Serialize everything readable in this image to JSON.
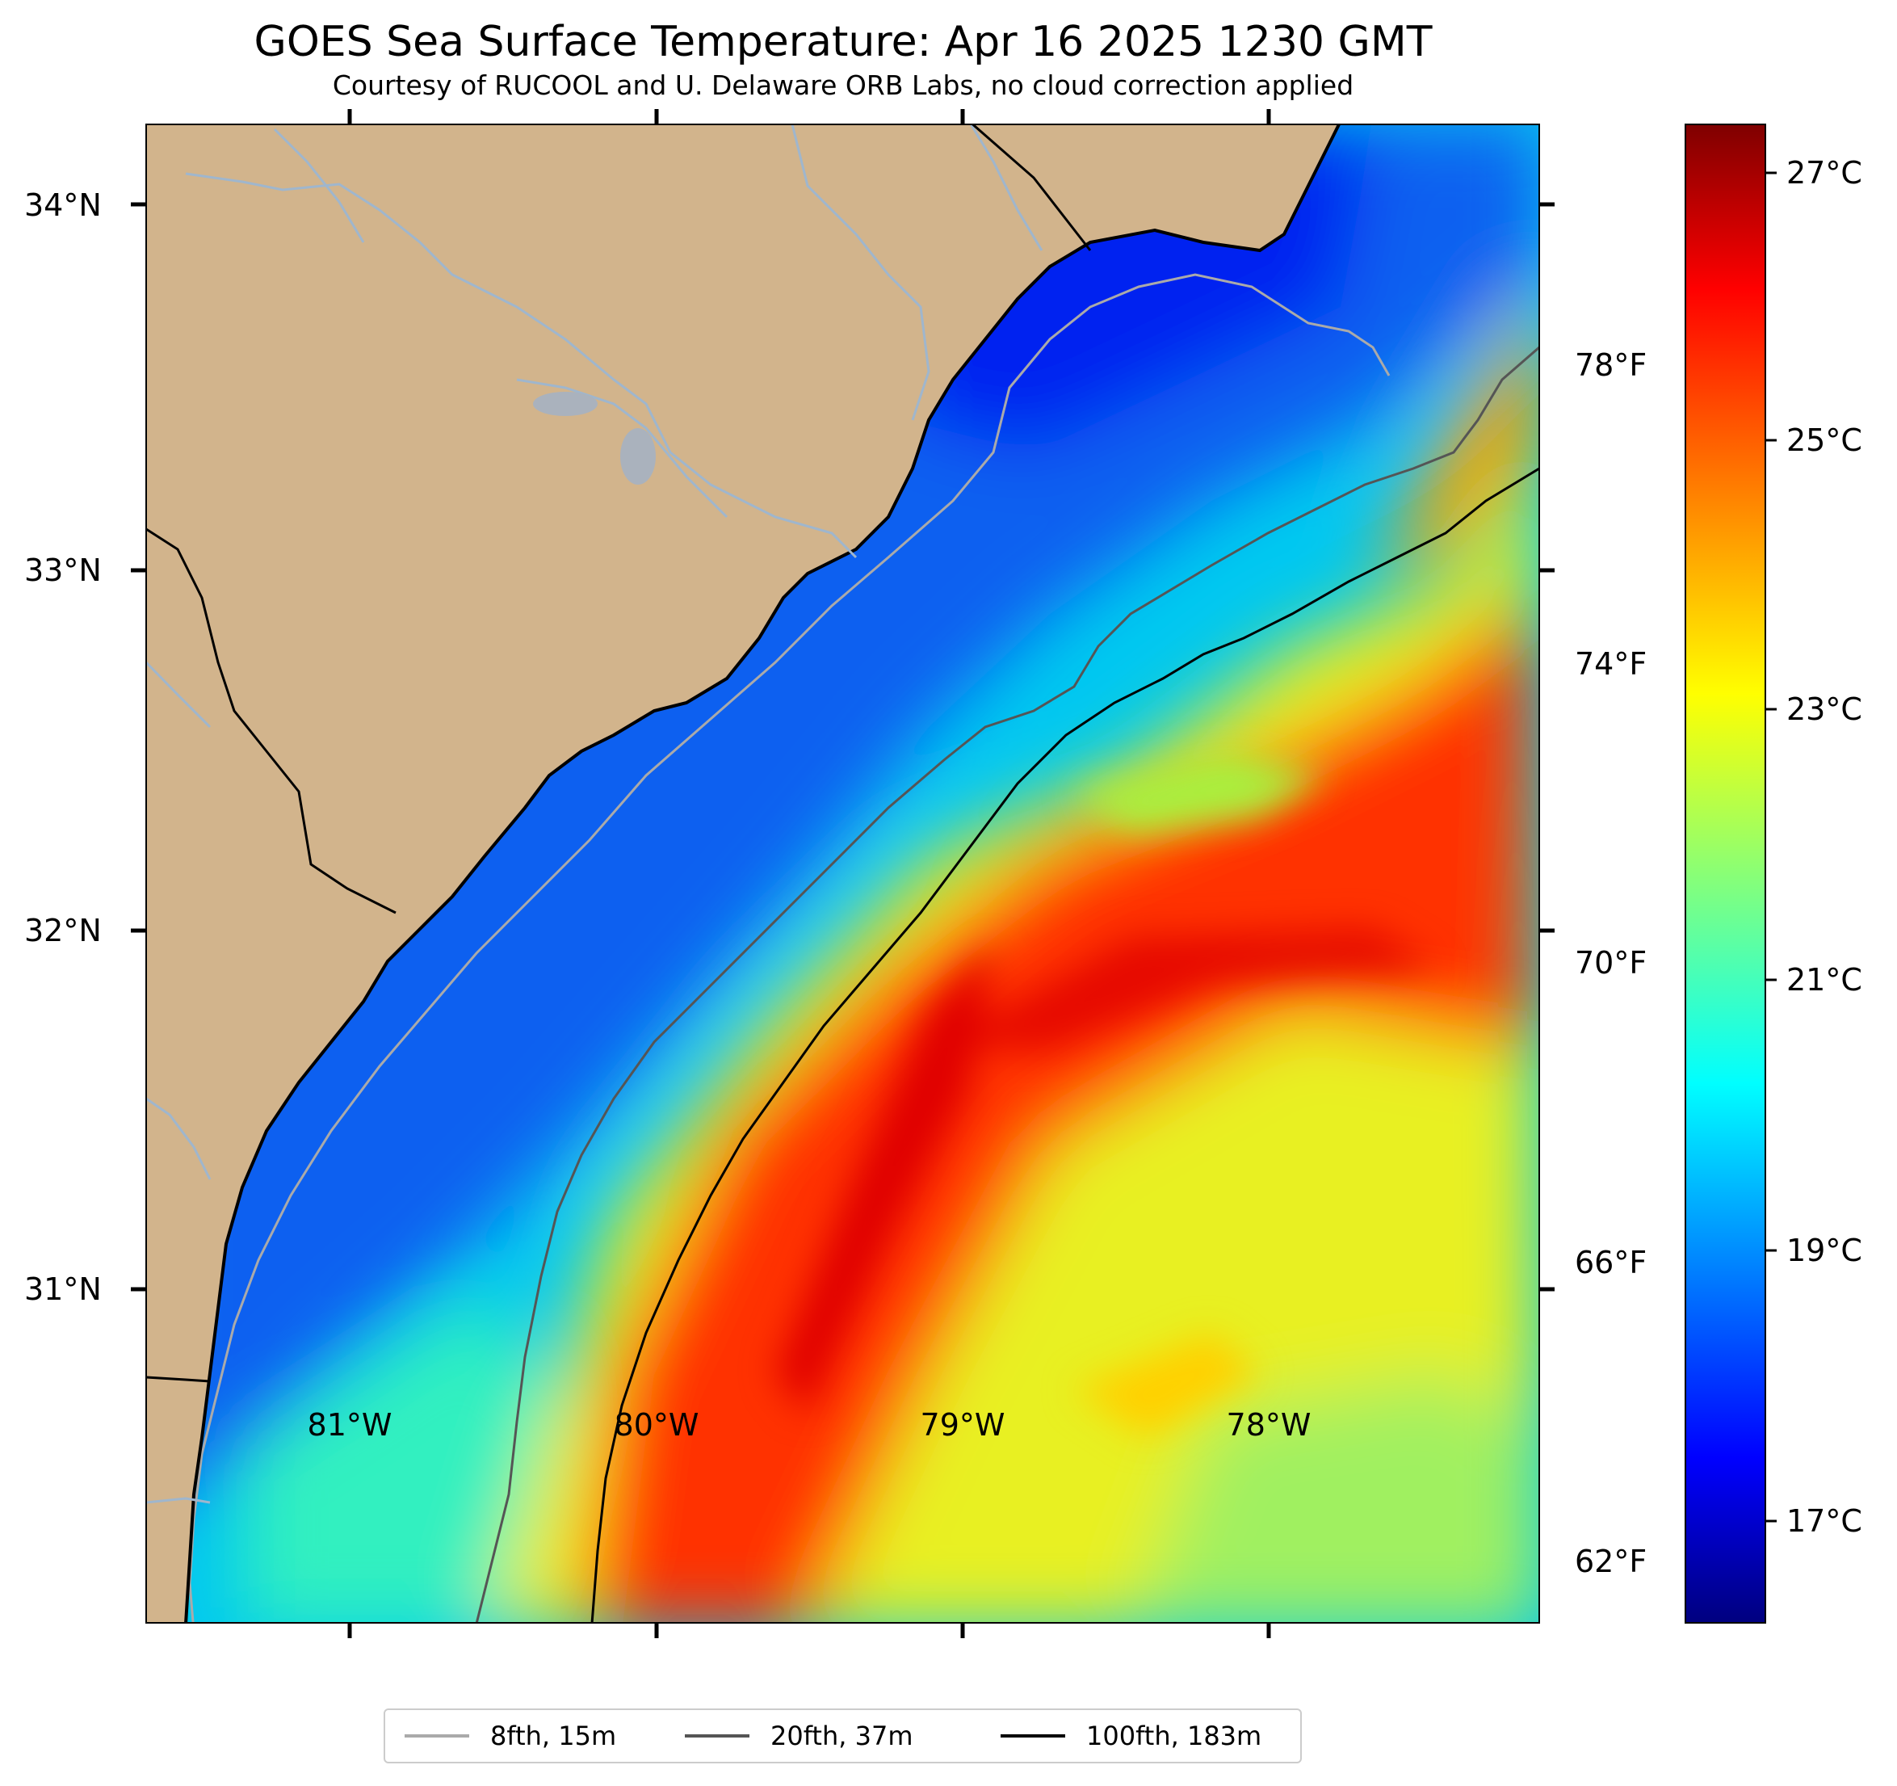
{
  "title": "GOES Sea Surface Temperature: Apr 16 2025 1230 GMT",
  "subtitle": "Courtesy of RUCOOL and U. Delaware ORB Labs, no cloud correction applied",
  "axes": {
    "lat_labels": [
      "34°N",
      "33°N",
      "32°N",
      "31°N"
    ],
    "lon_labels": [
      "81°W",
      "80°W",
      "79°W",
      "78°W"
    ]
  },
  "colorbar": {
    "celsius_labels": [
      "27°C",
      "25°C",
      "23°C",
      "21°C",
      "19°C",
      "17°C"
    ],
    "fahrenheit_labels": [
      "78°F",
      "74°F",
      "70°F",
      "66°F",
      "62°F"
    ],
    "range_c": [
      15.8,
      27.6
    ],
    "colormap": "jet"
  },
  "legend": {
    "items": [
      {
        "label": "8fth, 15m",
        "color": "#aaaaaa"
      },
      {
        "label": "20fth, 37m",
        "color": "#555555"
      },
      {
        "label": "100fth, 183m",
        "color": "#000000"
      }
    ]
  },
  "colors": {
    "land": "#d2b48c",
    "river": "#9fb6cd",
    "coast": "#000000"
  }
}
